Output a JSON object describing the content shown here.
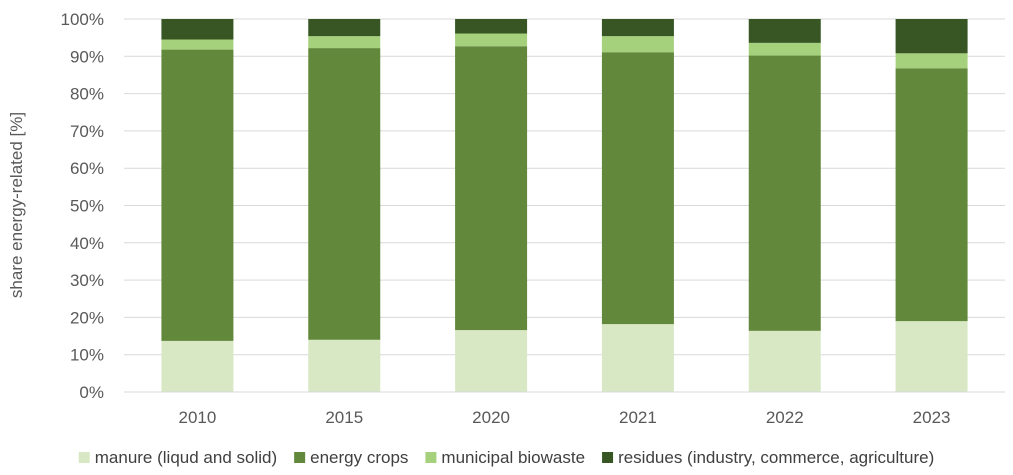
{
  "chart_data": {
    "type": "bar",
    "stacked": true,
    "percent": true,
    "title": "",
    "xlabel": "",
    "ylabel": "share energy-related [%]",
    "ylim": [
      0,
      100
    ],
    "yticks": [
      "0%",
      "10%",
      "20%",
      "30%",
      "40%",
      "50%",
      "60%",
      "70%",
      "80%",
      "90%",
      "100%"
    ],
    "grid": true,
    "legend_position": "bottom",
    "categories": [
      "2010",
      "2015",
      "2020",
      "2021",
      "2022",
      "2023"
    ],
    "series": [
      {
        "name": "manure (liqud and solid)",
        "color": "#d8e8c4",
        "values": [
          13.7,
          14.0,
          16.6,
          18.2,
          16.4,
          19.0
        ]
      },
      {
        "name": "energy crops",
        "color": "#62883b",
        "values": [
          78.1,
          78.2,
          76.1,
          72.9,
          73.8,
          67.8
        ]
      },
      {
        "name": "municipal biowaste",
        "color": "#a6d17c",
        "values": [
          2.7,
          3.2,
          3.4,
          4.3,
          3.4,
          4.0
        ]
      },
      {
        "name": "residues (industry, commerce, agriculture)",
        "color": "#375624",
        "values": [
          5.5,
          4.6,
          3.9,
          4.6,
          6.4,
          9.2
        ]
      }
    ]
  }
}
